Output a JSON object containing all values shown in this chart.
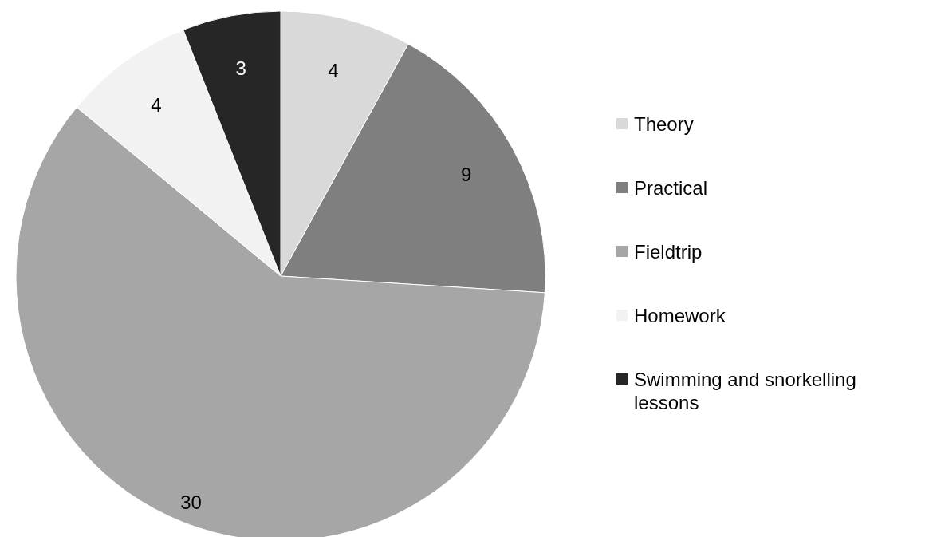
{
  "chart_data": {
    "type": "pie",
    "categories": [
      "Theory",
      "Practical",
      "Fieldtrip",
      "Homework",
      "Swimming and snorkelling lessons"
    ],
    "values": [
      4,
      9,
      30,
      4,
      3
    ],
    "colors": [
      "#d9d9d9",
      "#7f7f7f",
      "#a6a6a6",
      "#f2f2f2",
      "#262626"
    ],
    "data_labels": true,
    "legend": "right"
  }
}
